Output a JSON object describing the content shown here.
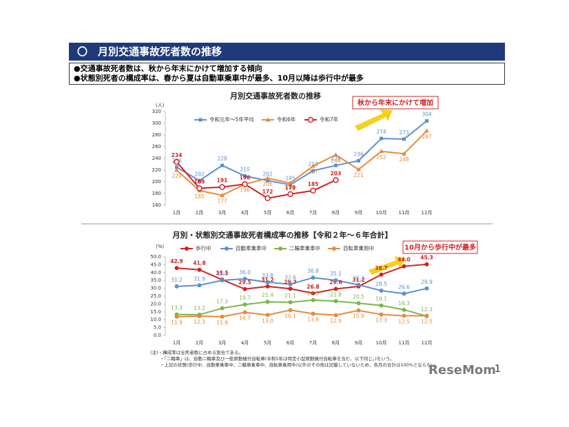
{
  "header": {
    "title": "〇　月別交通事故死者数の推移",
    "bullets": [
      "●交通事故死者数は、秋から年末にかけて増加する傾向",
      "●状態別死者の構成率は、春から夏は自動車乗車中が最多、10月以降は歩行中が最多"
    ]
  },
  "chart_data": [
    {
      "type": "line",
      "title": "月別交通事故死者数の推移",
      "y_unit": "(人)",
      "annotation": "秋から年末にかけて増加",
      "categories": [
        "1月",
        "2月",
        "3月",
        "4月",
        "5月",
        "6月",
        "7月",
        "8月",
        "9月",
        "10月",
        "11月",
        "12月"
      ],
      "ylim": [
        160,
        320
      ],
      "yticks": [
        160,
        180,
        200,
        220,
        240,
        260,
        280,
        300,
        320
      ],
      "series": [
        {
          "name": "令和元年～5年平均",
          "color": "#5b8fd0",
          "marker": "square",
          "values": [
            225,
            202,
            228,
            210,
            202,
            195,
            219,
            228,
            236,
            274,
            273,
            304
          ]
        },
        {
          "name": "令和6年",
          "color": "#e68a3c",
          "marker": "triangle",
          "values": [
            220,
            185,
            177,
            196,
            206,
            198,
            227,
            246,
            221,
            252,
            248,
            287
          ]
        },
        {
          "name": "令和7年",
          "color": "#d42020",
          "marker": "hollow-circle",
          "values": [
            234,
            189,
            191,
            196,
            172,
            179,
            185,
            203,
            null,
            null,
            null,
            null
          ]
        }
      ]
    },
    {
      "type": "line",
      "title": "月別・状態別交通事故死者構成率の推移【令和２年～６年合計】",
      "y_unit": "(%)",
      "annotation": "10月から歩行中が最多",
      "categories": [
        "1月",
        "2月",
        "3月",
        "4月",
        "5月",
        "6月",
        "7月",
        "8月",
        "9月",
        "10月",
        "11月",
        "12月"
      ],
      "ylim": [
        0,
        50
      ],
      "yticks": [
        {
          "value": 0,
          "label": "0.0"
        },
        {
          "value": 5,
          "label": "5.0"
        },
        {
          "value": 10,
          "label": "10.0"
        },
        {
          "value": 15,
          "label": "15.0"
        },
        {
          "value": 20,
          "label": "20.0"
        },
        {
          "value": 25,
          "label": "25.0"
        },
        {
          "value": 30,
          "label": "30.0"
        },
        {
          "value": 35,
          "label": "35.0"
        },
        {
          "value": 40,
          "label": "40.0"
        },
        {
          "value": 45,
          "label": "45.0"
        },
        {
          "value": 50,
          "label": "50.0"
        }
      ],
      "series": [
        {
          "name": "歩行中",
          "color": "#d42020",
          "marker": "circle",
          "values": [
            42.9,
            41.8,
            35.5,
            29.5,
            31.2,
            29.7,
            26.8,
            29.6,
            31.2,
            38.7,
            44.0,
            45.3
          ],
          "value_labels": [
            "42.9",
            "41.8",
            "35.5",
            "29.5",
            "31.2",
            "29.7",
            "26.8",
            "29.6",
            "31.2",
            "38.7",
            "44.0",
            "45.3"
          ]
        },
        {
          "name": "自動車乗車中",
          "color": "#5b8fd0",
          "marker": "circle",
          "values": [
            31.2,
            31.9,
            35.1,
            36.0,
            33.8,
            32.6,
            36.8,
            35.1,
            32.2,
            28.5,
            26.6,
            29.9
          ],
          "value_labels": [
            "31.2",
            "31.9",
            "35.1",
            "36.0",
            "33.8",
            "32.6",
            "36.8",
            "35.1",
            "32.2",
            "28.5",
            "26.6",
            "29.9"
          ]
        },
        {
          "name": "二輪車乗車中",
          "color": "#7db54a",
          "marker": "circle",
          "values": [
            13.3,
            13.2,
            17.3,
            19.7,
            21.4,
            21.1,
            22.5,
            21.8,
            20.5,
            19.1,
            16.3,
            12.3
          ],
          "value_labels": [
            "13.3",
            "13.2",
            "17.3",
            "19.7",
            "21.4",
            "21.1",
            "22.5",
            "21.8",
            "20.5",
            "19.1",
            "16.3",
            "12.3"
          ]
        },
        {
          "name": "自転車乗用中",
          "color": "#e68a3c",
          "marker": "circle",
          "values": [
            11.9,
            12.3,
            11.9,
            14.7,
            13.0,
            16.1,
            13.8,
            12.9,
            15.9,
            13.3,
            12.5,
            12.5
          ],
          "value_labels": [
            "11.9",
            "12.3",
            "11.9",
            "14.7",
            "13.0",
            "16.1",
            "13.8",
            "12.9",
            "15.9",
            "13.3",
            "12.5",
            "12.5"
          ]
        }
      ]
    }
  ],
  "notes": [
    "(注)・構成率は全死者数に占める割合である。",
    "・「二輪車」は、自動二輪車及び一般原動機付自転車(令和5年は特定小型原動機付自転車を含む、以下同じ。)をいう。",
    "・上記の状態(歩行中、自動車乗車中、二輪車乗車中、自転車乗用中)以外のその他は記載していないため、各月の合計は100%とならない。"
  ],
  "logo": "ReseMom",
  "page_number": "1"
}
